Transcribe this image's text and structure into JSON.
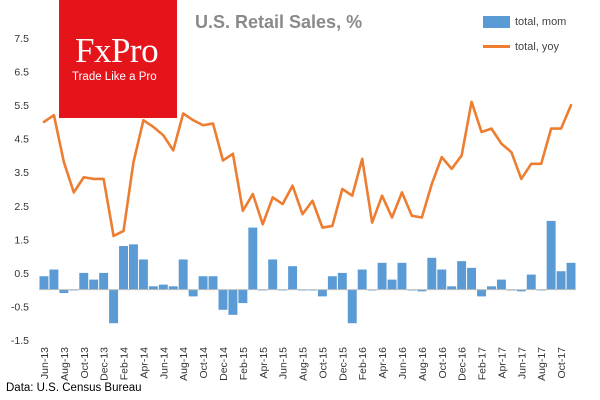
{
  "branding": {
    "logo_text": "FxPro",
    "tagline": "Trade Like a Pro"
  },
  "source": "Data: U.S. Census Bureau",
  "colors": {
    "bars": "#5b9bd5",
    "line": "#ed7d31",
    "logo": "#e5141b",
    "title": "#8a8a8a"
  },
  "chart_data": {
    "type": "bar+line",
    "title": "U.S. Retail Sales, %",
    "xlabel": "",
    "ylabel": "",
    "ylim": [
      -1.5,
      7.5
    ],
    "yticks": [
      -1.5,
      -0.5,
      0.5,
      1.5,
      2.5,
      3.5,
      4.5,
      5.5,
      6.5,
      7.5
    ],
    "ytick_labels": [
      "-1.5",
      "-0.5",
      "0.5",
      "1.5",
      "2.5",
      "3.5",
      "4.5",
      "5.5",
      "6.5",
      "7.5"
    ],
    "grid": false,
    "legend_position": "top-right",
    "x": [
      "Jun-13",
      "Jul-13",
      "Aug-13",
      "Sep-13",
      "Oct-13",
      "Nov-13",
      "Dec-13",
      "Jan-14",
      "Feb-14",
      "Mar-14",
      "Apr-14",
      "May-14",
      "Jun-14",
      "Jul-14",
      "Aug-14",
      "Sep-14",
      "Oct-14",
      "Nov-14",
      "Dec-14",
      "Jan-15",
      "Feb-15",
      "Mar-15",
      "Apr-15",
      "May-15",
      "Jun-15",
      "Jul-15",
      "Aug-15",
      "Sep-15",
      "Oct-15",
      "Nov-15",
      "Dec-15",
      "Jan-16",
      "Feb-16",
      "Mar-16",
      "Apr-16",
      "May-16",
      "Jun-16",
      "Jul-16",
      "Aug-16",
      "Sep-16",
      "Oct-16",
      "Nov-16",
      "Dec-16",
      "Jan-17",
      "Feb-17",
      "Mar-17",
      "Apr-17",
      "May-17",
      "Jun-17",
      "Jul-17",
      "Aug-17",
      "Sep-17",
      "Oct-17",
      "Nov-17"
    ],
    "xtick_labels": [
      "Jun-13",
      "Aug-13",
      "Oct-13",
      "Dec-13",
      "Feb-14",
      "Apr-14",
      "Jun-14",
      "Aug-14",
      "Oct-14",
      "Dec-14",
      "Feb-15",
      "Apr-15",
      "Jun-15",
      "Aug-15",
      "Oct-15",
      "Dec-15",
      "Feb-16",
      "Apr-16",
      "Jun-16",
      "Aug-16",
      "Oct-16",
      "Dec-16",
      "Feb-17",
      "Apr-17",
      "Jun-17",
      "Aug-17",
      "Oct-17"
    ],
    "series": [
      {
        "name": "total, mom",
        "type": "bar",
        "values": [
          0.4,
          0.6,
          -0.1,
          0.0,
          0.5,
          0.3,
          0.5,
          -1.0,
          1.3,
          1.35,
          0.9,
          0.1,
          0.15,
          0.1,
          0.9,
          -0.2,
          0.4,
          0.4,
          -0.6,
          -0.75,
          -0.4,
          1.85,
          0.0,
          0.9,
          0.0,
          0.7,
          0.0,
          0.0,
          -0.2,
          0.4,
          0.5,
          -1.0,
          0.6,
          0.0,
          0.8,
          0.3,
          0.8,
          0.0,
          -0.05,
          0.95,
          0.6,
          0.1,
          0.85,
          0.65,
          -0.2,
          0.1,
          0.3,
          0.0,
          -0.05,
          0.45,
          0.0,
          2.05,
          0.55,
          0.8
        ]
      },
      {
        "name": "total, yoy",
        "type": "line",
        "values": [
          5.0,
          5.2,
          3.8,
          2.9,
          3.35,
          3.3,
          3.3,
          1.6,
          1.75,
          3.8,
          5.05,
          4.85,
          4.6,
          4.15,
          5.25,
          5.05,
          4.9,
          4.95,
          3.85,
          4.05,
          2.35,
          2.85,
          1.95,
          2.75,
          2.55,
          3.1,
          2.25,
          2.65,
          1.85,
          1.9,
          3.0,
          2.8,
          3.9,
          2.0,
          2.8,
          2.15,
          2.9,
          2.2,
          2.15,
          3.15,
          3.95,
          3.6,
          4.0,
          5.6,
          4.7,
          4.8,
          4.35,
          4.1,
          3.3,
          3.75,
          3.75,
          4.8,
          4.8,
          5.5
        ]
      }
    ]
  }
}
